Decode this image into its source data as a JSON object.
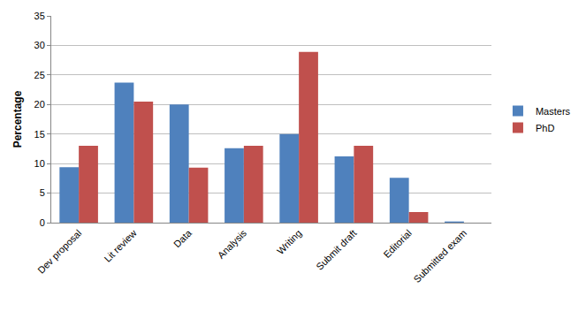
{
  "chart_data": {
    "type": "bar",
    "y_label": "Percentage",
    "categories": [
      "Dev proposal",
      "Lit review",
      "Data",
      "Analysis",
      "Writing",
      "Submit draft",
      "Editorial",
      "Submitted exam"
    ],
    "series": [
      {
        "name": "Masters",
        "color": "#4f81bd",
        "values": [
          9.4,
          23.7,
          20,
          12.6,
          15,
          11.2,
          7.6,
          0.2
        ]
      },
      {
        "name": "PhD",
        "color": "#c0504d",
        "values": [
          13,
          20.5,
          9.3,
          13,
          28.9,
          13,
          1.8,
          0
        ]
      }
    ],
    "ylim": [
      0,
      35
    ],
    "yticks": [
      0,
      5,
      10,
      15,
      20,
      25,
      30,
      35
    ],
    "grid": true,
    "legend": "right"
  }
}
